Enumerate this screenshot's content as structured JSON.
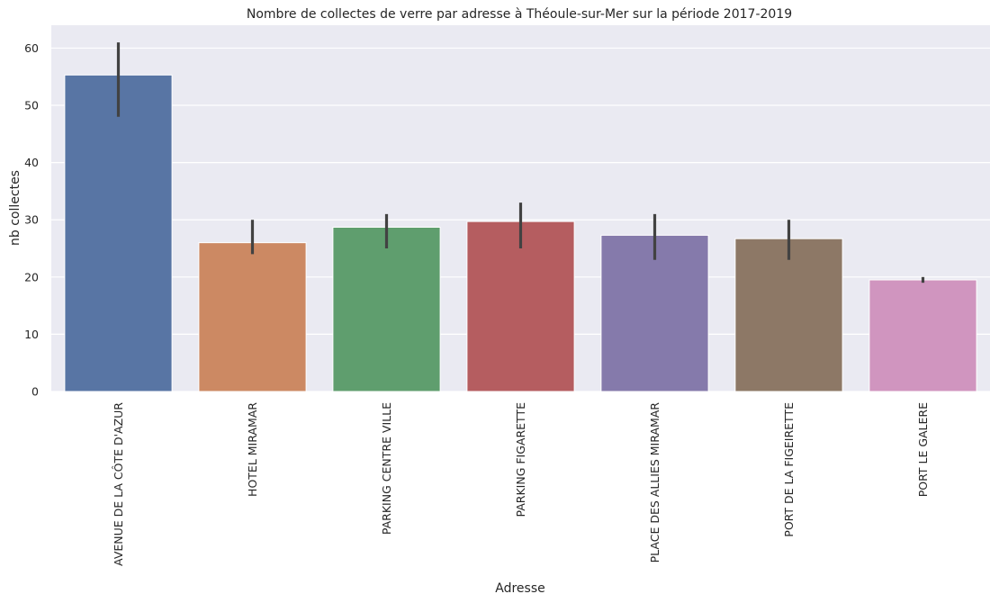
{
  "chart_data": {
    "type": "bar",
    "title": "Nombre de collectes de verre par adresse à Théoule-sur-Mer sur la période 2017-2019",
    "xlabel": "Adresse",
    "ylabel": "nb collectes",
    "ylim": [
      0,
      64
    ],
    "yticks": [
      0,
      10,
      20,
      30,
      40,
      50,
      60
    ],
    "grid": true,
    "categories": [
      "AVENUE DE LA CÔTE D'AZUR",
      "HOTEL MIRAMAR",
      "PARKING CENTRE VILLE",
      "PARKING FIGARETTE",
      "PLACE DES ALLIES MIRAMAR",
      "PORT DE LA FIGEIRETTE",
      "PORT LE GALERE"
    ],
    "values": [
      55.3,
      26.0,
      28.7,
      29.7,
      27.3,
      26.7,
      19.5
    ],
    "error_low": [
      48,
      24,
      25,
      25,
      23,
      23,
      19
    ],
    "error_high": [
      61,
      30,
      31,
      33,
      31,
      30,
      20
    ],
    "colors": [
      "#5875a4",
      "#cc8963",
      "#5f9e6e",
      "#b55d60",
      "#857aab",
      "#8d7866",
      "#d095bf"
    ],
    "background": "#eaeaf2",
    "errorbar_color": "#424242"
  }
}
